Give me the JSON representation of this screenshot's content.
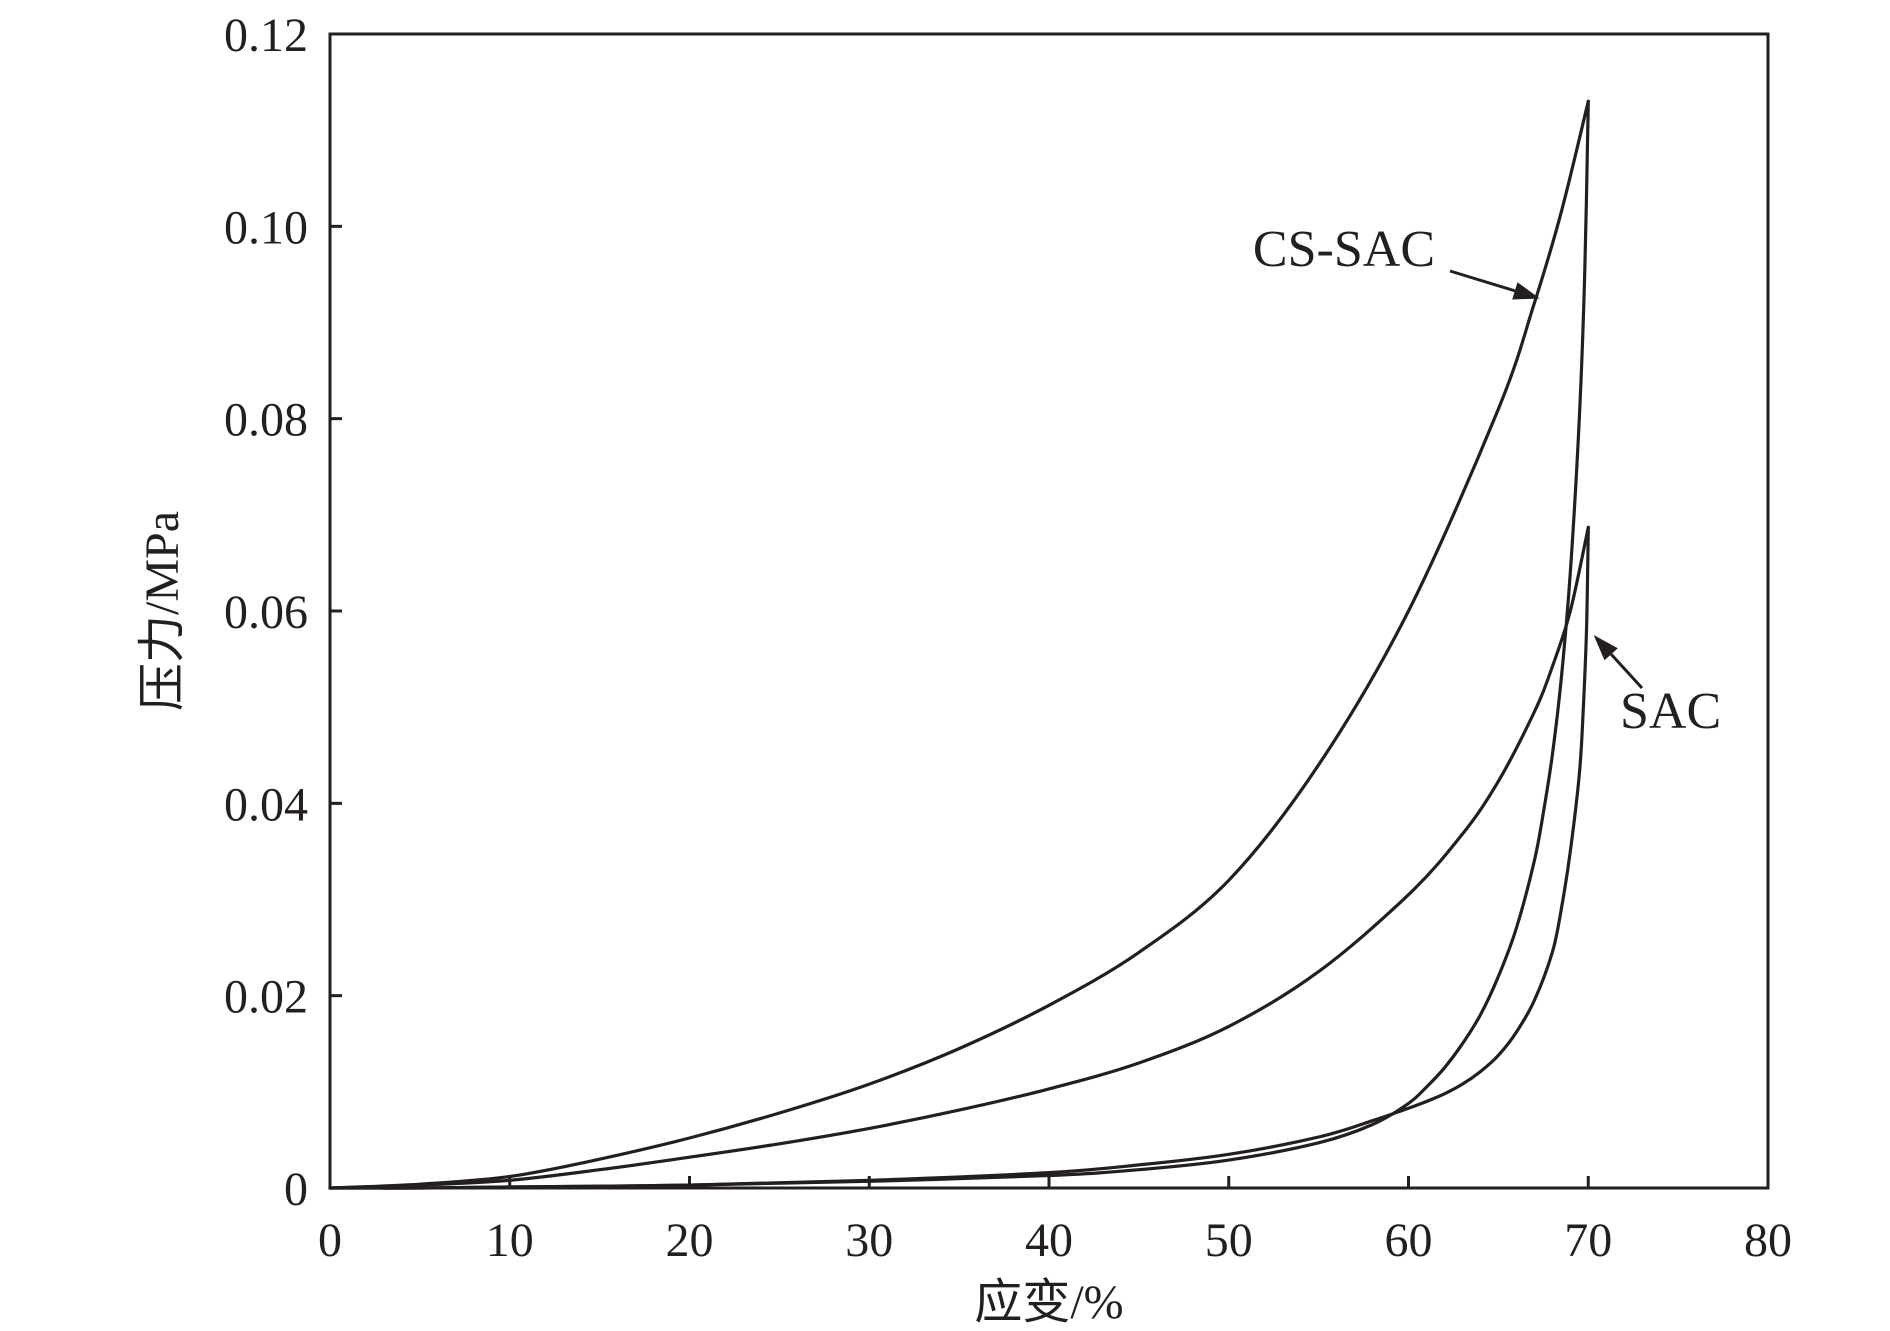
{
  "chart_data": {
    "type": "line",
    "xlabel": "应变/%",
    "ylabel": "压力/MPa",
    "xlim": [
      0,
      80
    ],
    "ylim": [
      0,
      0.12
    ],
    "x_ticks": [
      0,
      10,
      20,
      30,
      40,
      50,
      60,
      70,
      80
    ],
    "x_tick_labels": [
      "0",
      "10",
      "20",
      "30",
      "40",
      "50",
      "60",
      "70",
      "80"
    ],
    "y_ticks": [
      0,
      0.02,
      0.04,
      0.06,
      0.08,
      0.1,
      0.12
    ],
    "y_tick_labels": [
      "0",
      "0.02",
      "0.04",
      "0.06",
      "0.08",
      "0.10",
      "0.12"
    ],
    "grid": false,
    "legend": "none",
    "series": [
      {
        "name": "CS-SAC",
        "loading": {
          "x": [
            0,
            5,
            10,
            15,
            20,
            25,
            30,
            35,
            40,
            45,
            50,
            55,
            60,
            65,
            67,
            68.5,
            70
          ],
          "y": [
            0,
            0.0004,
            0.0012,
            0.003,
            0.0052,
            0.0078,
            0.0108,
            0.0145,
            0.019,
            0.0245,
            0.032,
            0.044,
            0.06,
            0.081,
            0.092,
            0.1015,
            0.113
          ]
        },
        "unloading": {
          "x": [
            70,
            69.8,
            69.5,
            69,
            68.5,
            68,
            67.5,
            67,
            66,
            65,
            64,
            63,
            62,
            61,
            60,
            58,
            55,
            50,
            45,
            40,
            30,
            20,
            10,
            5,
            0
          ],
          "y": [
            0.113,
            0.095,
            0.08,
            0.064,
            0.053,
            0.045,
            0.039,
            0.034,
            0.027,
            0.022,
            0.018,
            0.015,
            0.0125,
            0.0105,
            0.0088,
            0.0066,
            0.0047,
            0.0029,
            0.0019,
            0.0013,
            0.0007,
            0.0003,
            0.0001,
            0,
            0
          ]
        }
      },
      {
        "name": "SAC",
        "loading": {
          "x": [
            0,
            5,
            10,
            15,
            20,
            25,
            30,
            35,
            40,
            45,
            50,
            55,
            60,
            63,
            65,
            67,
            68,
            69,
            70
          ],
          "y": [
            0,
            0.0003,
            0.0008,
            0.0019,
            0.0032,
            0.0046,
            0.0062,
            0.0081,
            0.0103,
            0.013,
            0.0168,
            0.0225,
            0.0305,
            0.0368,
            0.0423,
            0.0495,
            0.0542,
            0.06,
            0.0687
          ]
        },
        "unloading": {
          "x": [
            70,
            69.9,
            69.7,
            69.5,
            69,
            68.5,
            68,
            67,
            66,
            65,
            64,
            63,
            62,
            61,
            60,
            58,
            55,
            50,
            45,
            40,
            30,
            20,
            10,
            5,
            0
          ],
          "y": [
            0.0687,
            0.058,
            0.049,
            0.043,
            0.035,
            0.029,
            0.0245,
            0.0195,
            0.0162,
            0.0138,
            0.0121,
            0.0108,
            0.0098,
            0.009,
            0.0083,
            0.007,
            0.0053,
            0.0035,
            0.0024,
            0.0016,
            0.0008,
            0.0003,
            0.0001,
            0,
            0
          ]
        }
      }
    ],
    "annotations": [
      {
        "text": "CS-SAC",
        "arrow_to": [
          67.3,
          0.0925
        ]
      },
      {
        "text": "SAC",
        "arrow_to": [
          70.3,
          0.0575
        ]
      }
    ]
  }
}
